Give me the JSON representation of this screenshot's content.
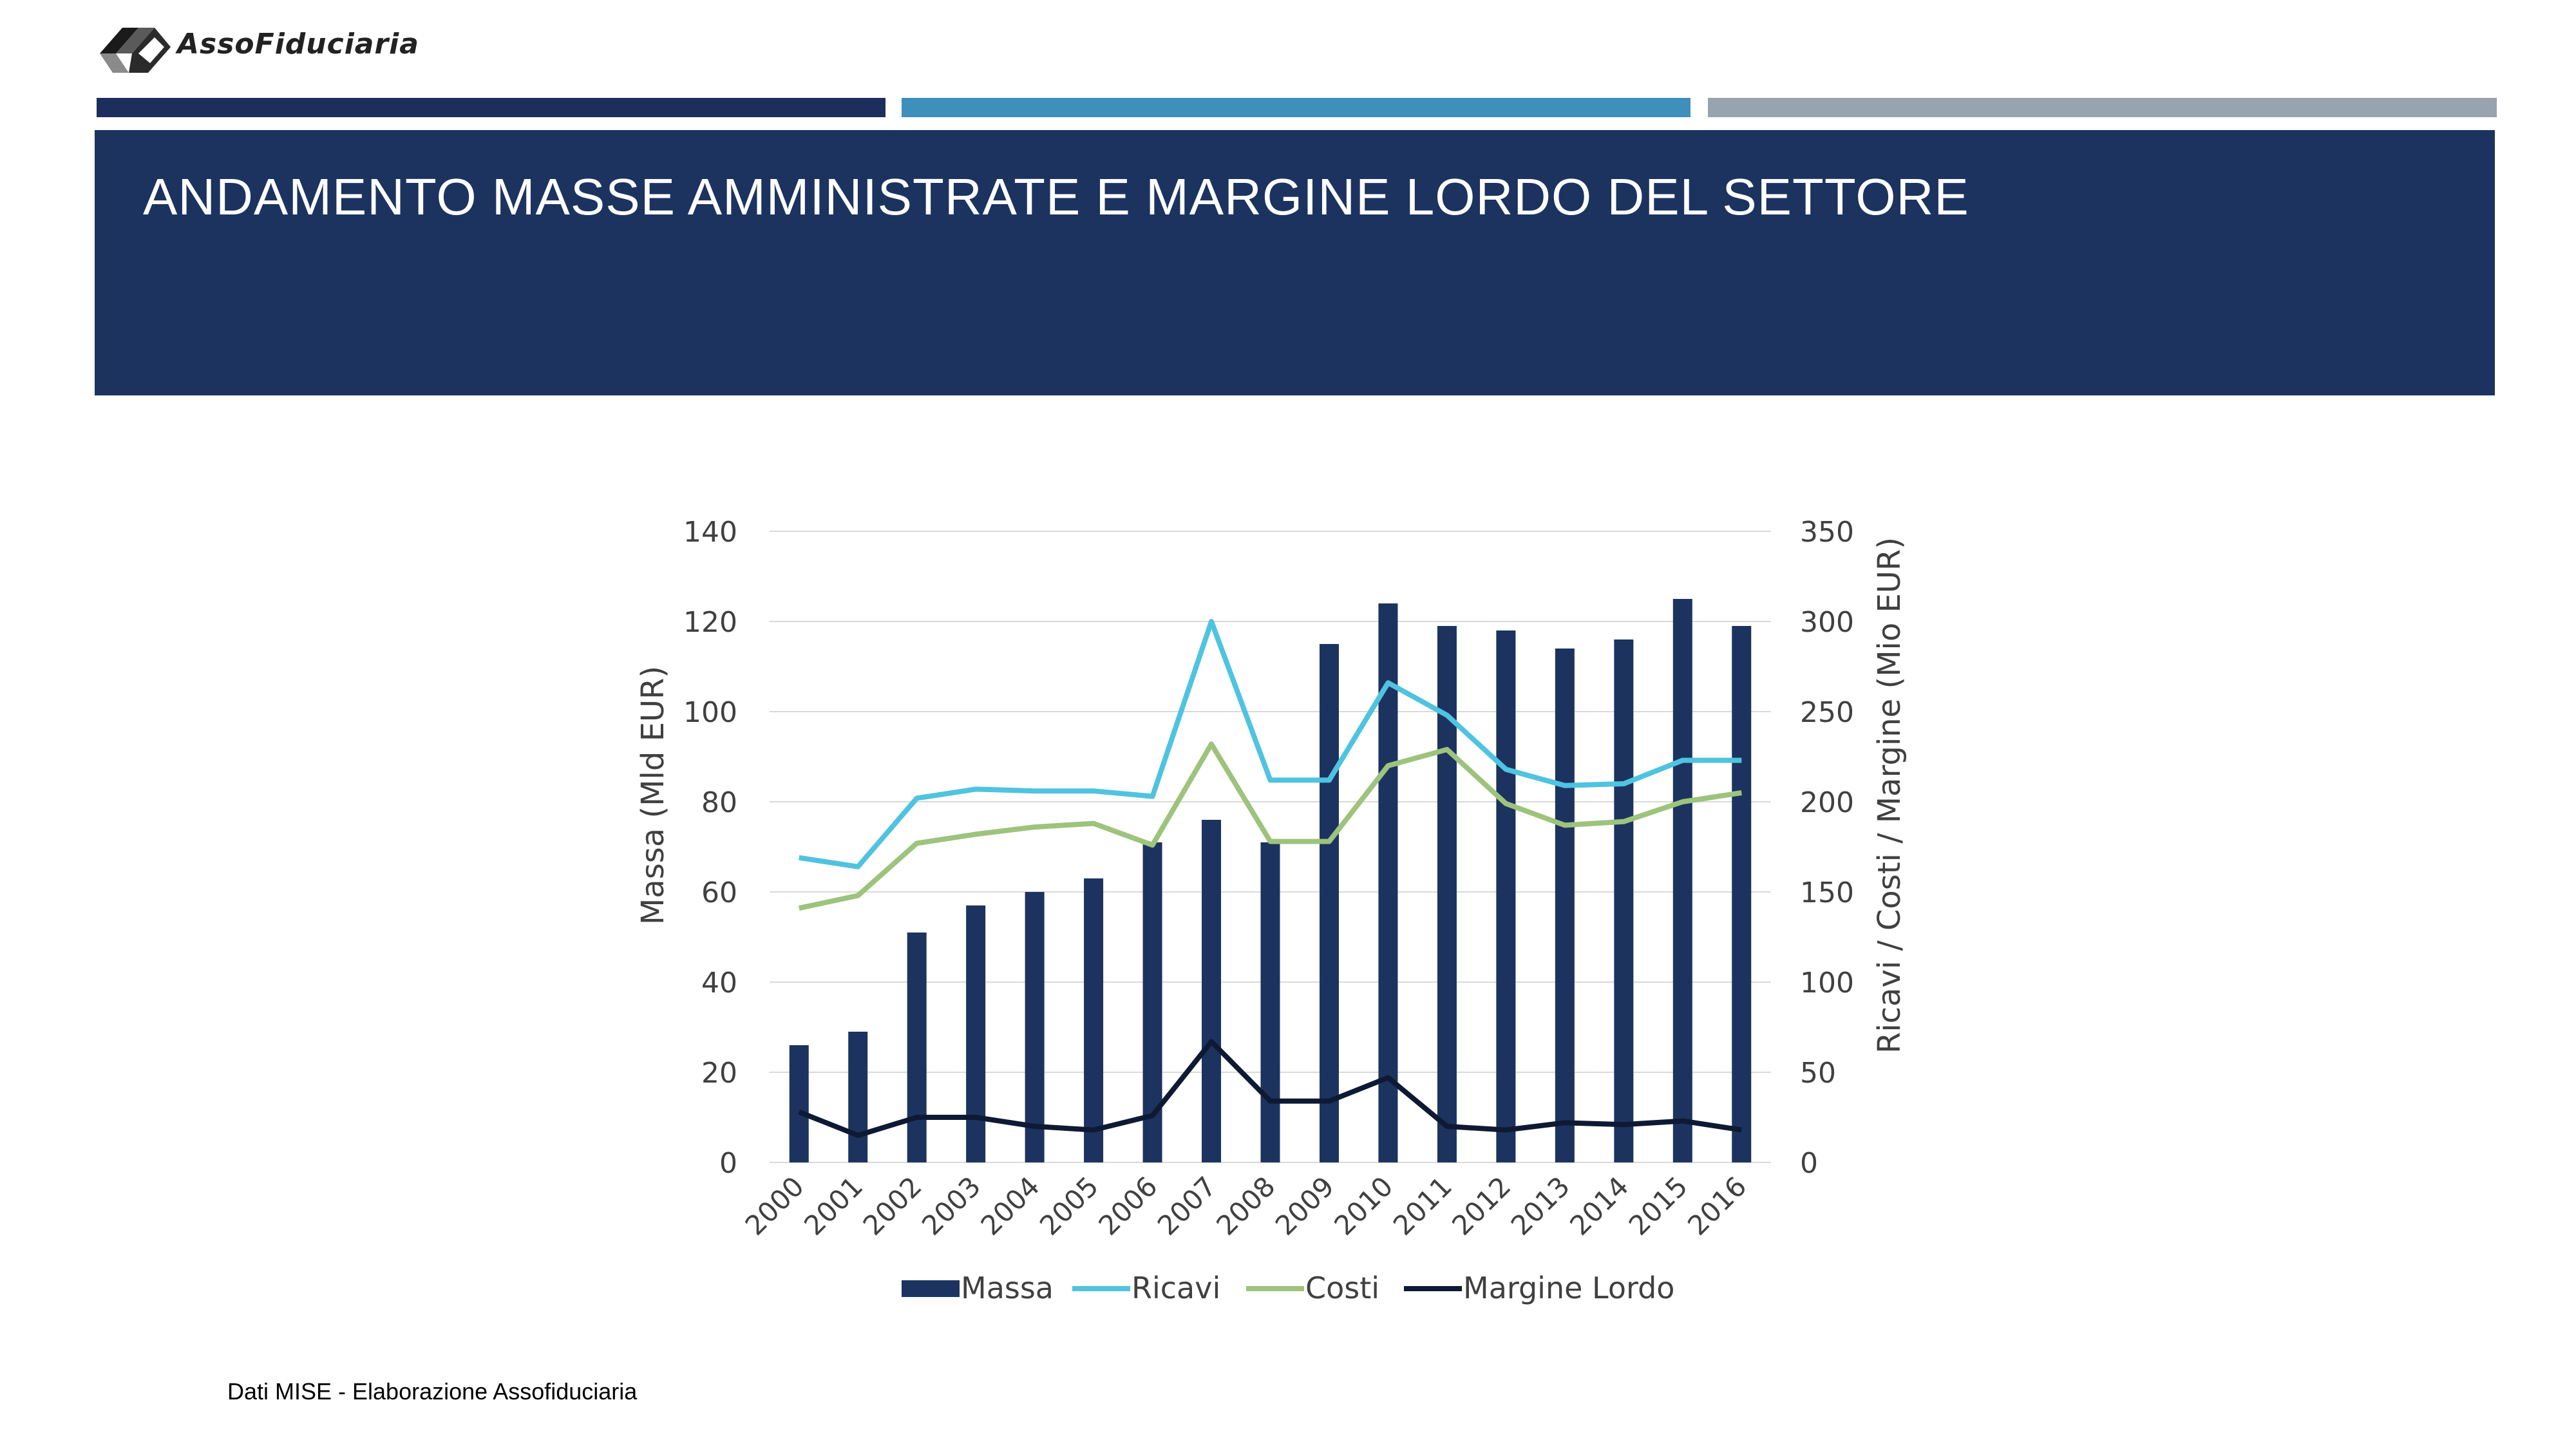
{
  "header": {
    "logo_text": "AssoFiduciaria",
    "title": "ANDAMENTO MASSE AMMINISTRATE E MARGINE LORDO DEL SETTORE",
    "bands": [
      "#1c2f5c",
      "#3f8fbd",
      "#97a3ae"
    ],
    "title_bg": "#1c3360"
  },
  "source_note": "Dati MISE - Elaborazione Assofiduciaria",
  "chart_data": {
    "type": "bar",
    "categories": [
      "2000",
      "2001",
      "2002",
      "2003",
      "2004",
      "2005",
      "2006",
      "2007",
      "2008",
      "2009",
      "2010",
      "2011",
      "2012",
      "2013",
      "2014",
      "2015",
      "2016"
    ],
    "ylabel": "Massa (Mld EUR)",
    "y2label": "Ricavi  / Costi / Margine (Mio EUR)",
    "ylim": [
      0,
      140
    ],
    "y2lim": [
      0,
      350
    ],
    "yticks": [
      0,
      20,
      40,
      60,
      80,
      100,
      120,
      140
    ],
    "y2ticks": [
      0,
      50,
      100,
      150,
      200,
      250,
      300,
      350
    ],
    "grid": true,
    "legend_position": "bottom",
    "series": [
      {
        "name": "Massa",
        "type": "bar",
        "axis": "left",
        "color": "#1c3360",
        "values": [
          26,
          29,
          51,
          57,
          60,
          63,
          71,
          76,
          71,
          115,
          124,
          119,
          118,
          114,
          116,
          125,
          119
        ]
      },
      {
        "name": "Ricavi",
        "type": "line",
        "axis": "right",
        "color": "#4fc3e0",
        "values": [
          169,
          164,
          202,
          207,
          206,
          206,
          203,
          300,
          212,
          212,
          266,
          248,
          218,
          209,
          210,
          223,
          223
        ]
      },
      {
        "name": "Costi",
        "type": "line",
        "axis": "right",
        "color": "#9dc37c",
        "values": [
          141,
          148,
          177,
          182,
          186,
          188,
          176,
          232,
          178,
          178,
          220,
          229,
          199,
          187,
          189,
          200,
          205
        ]
      },
      {
        "name": "Margine Lordo",
        "type": "line",
        "axis": "right",
        "color": "#0e1a33",
        "values": [
          28,
          15,
          25,
          25,
          20,
          18,
          26,
          67,
          34,
          34,
          47,
          20,
          18,
          22,
          21,
          23,
          18
        ]
      }
    ]
  }
}
